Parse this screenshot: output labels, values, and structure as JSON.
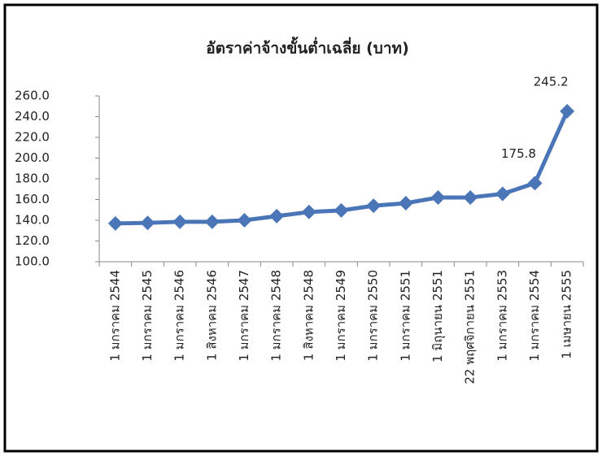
{
  "chart_data": {
    "type": "line",
    "title": "อัตราค่าจ้างขั้นต่ำเฉลี่ย (บาท)",
    "categories": [
      "1 มกราคม 2544",
      "1 มกราคม 2545",
      "1 มกราคม 2546",
      "1 สิงหาคม 2546",
      "1 มกราคม 2547",
      "1 มกราคม 2548",
      "1 สิงหาคม 2548",
      "1 มกราคม 2549",
      "1 มกราคม 2550",
      "1 มกราคม 2551",
      "1 มิถุนายน 2551",
      "22 พฤศจิกายน 2551",
      "1 มกราคม 2553",
      "1 มกราคม 2554",
      "1 เมษายน 2555"
    ],
    "series": [
      {
        "color": "#4a76b8",
        "values": [
          137,
          137.5,
          138.5,
          138.5,
          140,
          144,
          148,
          149.5,
          154,
          156.5,
          162,
          162,
          165.5,
          175.8,
          245.2
        ],
        "value_labels": [
          null,
          null,
          null,
          null,
          null,
          null,
          null,
          null,
          null,
          null,
          null,
          null,
          null,
          "175.8",
          "245.2"
        ]
      }
    ],
    "ylim": [
      100,
      260
    ],
    "yticks": [
      {
        "value": 100,
        "label": "100.0"
      },
      {
        "value": 120,
        "label": "120.0"
      },
      {
        "value": 140,
        "label": "140.0"
      },
      {
        "value": 160,
        "label": "160.0"
      },
      {
        "value": 180,
        "label": "180.0"
      },
      {
        "value": 200,
        "label": "200.0"
      },
      {
        "value": 220,
        "label": "220.0"
      },
      {
        "value": 240,
        "label": "240.0"
      },
      {
        "value": 260,
        "label": "260.0"
      }
    ],
    "grid": false
  }
}
